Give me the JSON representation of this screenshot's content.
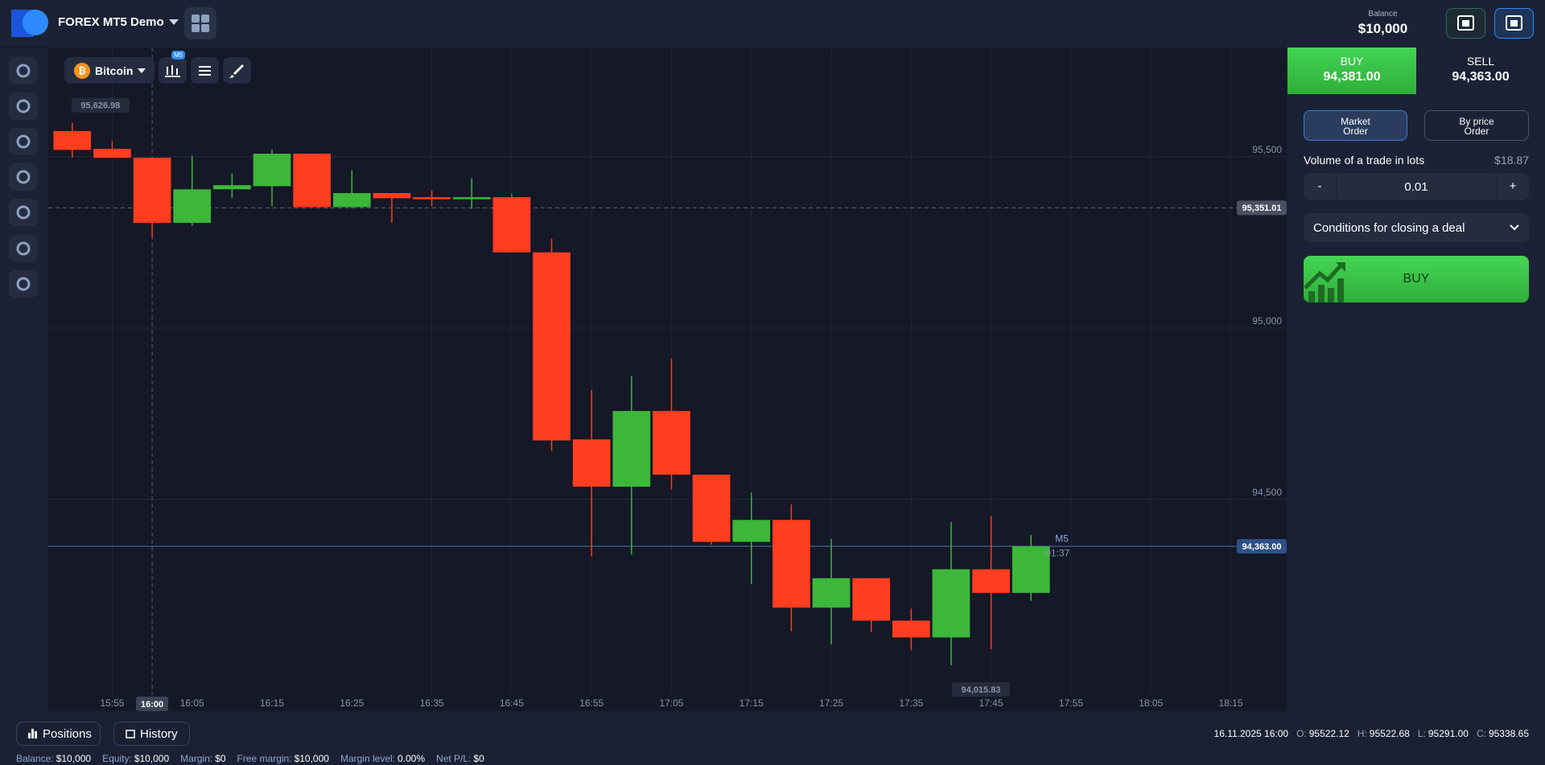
{
  "header": {
    "account": "FOREX MT5 Demo",
    "balance_label": "Balance",
    "balance": "$10,000"
  },
  "toolbar": {
    "symbol": "Bitcoin",
    "timeframe": "M5"
  },
  "chart": {
    "type": "candlestick",
    "up_color": "#3cb73a",
    "down_color": "#ff3d1f",
    "x": [
      "15:50",
      "15:55",
      "16:00",
      "16:05",
      "16:10",
      "16:15",
      "16:20",
      "16:25",
      "16:30",
      "16:35",
      "16:40",
      "16:45",
      "16:50",
      "16:55",
      "17:00",
      "17:05",
      "17:10",
      "17:15",
      "17:20",
      "17:25",
      "17:30",
      "17:35",
      "17:40",
      "17:45",
      "17:50"
    ],
    "open": [
      95575,
      95523,
      95497,
      95307,
      95405,
      95414,
      95509,
      95353,
      95394,
      95382,
      95376,
      95382,
      95221,
      94675,
      94537,
      94758,
      94572,
      94376,
      94440,
      94184,
      94270,
      94146,
      94097,
      94296,
      94227
    ],
    "high": [
      95598,
      95546,
      95497,
      95503,
      95451,
      95520,
      95509,
      95460,
      95394,
      95402,
      95437,
      95394,
      95261,
      94819,
      94859,
      94911,
      94572,
      94520,
      94485,
      94385,
      94270,
      94181,
      94434,
      94451,
      94396
    ],
    "low": [
      95497,
      95497,
      95264,
      95299,
      95379,
      95356,
      95353,
      95351,
      95307,
      95356,
      95348,
      95221,
      94641,
      94333,
      94339,
      94529,
      94368,
      94253,
      94115,
      94077,
      94112,
      94060,
      94015.83,
      94063,
      94204
    ],
    "close": [
      95520,
      95497,
      95307,
      95405,
      95417,
      95509,
      95353,
      95394,
      95379,
      95376,
      95382,
      95221,
      94672,
      94537,
      94758,
      94572,
      94376,
      94440,
      94184,
      94270,
      94146,
      94097,
      94296,
      94227,
      94363
    ],
    "xlim": [
      "15:47",
      "18:22"
    ],
    "ylim": [
      93882,
      95819
    ],
    "yticks": [
      {
        "value": 94500,
        "label": "94,500"
      },
      {
        "value": 95000,
        "label": "95,000"
      },
      {
        "value": 95500,
        "label": "95,500"
      }
    ],
    "xticks": [
      "15:55",
      "16:05",
      "16:15",
      "16:25",
      "16:35",
      "16:45",
      "16:55",
      "17:05",
      "17:15",
      "17:25",
      "17:35",
      "17:45",
      "17:55",
      "18:05",
      "18:15"
    ],
    "grid": true,
    "crosshair": {
      "time": "16:00",
      "price": {
        "value": 95351.01,
        "label": "95,351.01"
      }
    },
    "current_price": {
      "value": 94363,
      "label": "94,363.00"
    },
    "high_marker": {
      "value": 95626.98,
      "label": "95,626.98"
    },
    "low_marker": {
      "value": 94015.83,
      "label": "94,015.83"
    },
    "timeframe_label": "M5",
    "timer": "01:37"
  },
  "trade_panel": {
    "buy_label": "BUY",
    "buy_price": "94,381.00",
    "sell_label": "SELL",
    "sell_price": "94,363.00",
    "market_order": "Market\nOrder",
    "price_order": "By price\nOrder",
    "volume_label": "Volume of a trade in lots",
    "volume_cost": "$18.87",
    "minus": "-",
    "volume": "0.01",
    "plus": "+",
    "conditions": "Conditions for closing a deal",
    "buy_button": "BUY"
  },
  "footer": {
    "positions": "Positions",
    "history": "History",
    "datetime": "16.11.2025 16:00",
    "ohlc": [
      {
        "label": "O:",
        "value": "95522.12"
      },
      {
        "label": "H:",
        "value": "95522.68"
      },
      {
        "label": "L:",
        "value": "95291.00"
      },
      {
        "label": "C:",
        "value": "95338.65"
      }
    ],
    "status": [
      {
        "label": "Balance:",
        "value": "$10,000"
      },
      {
        "label": "Equity:",
        "value": "$10,000"
      },
      {
        "label": "Margin:",
        "value": "$0"
      },
      {
        "label": "Free margin:",
        "value": "$10,000"
      },
      {
        "label": "Margin level:",
        "value": "0.00%"
      },
      {
        "label": "Net P/L:",
        "value": "$0"
      }
    ]
  }
}
